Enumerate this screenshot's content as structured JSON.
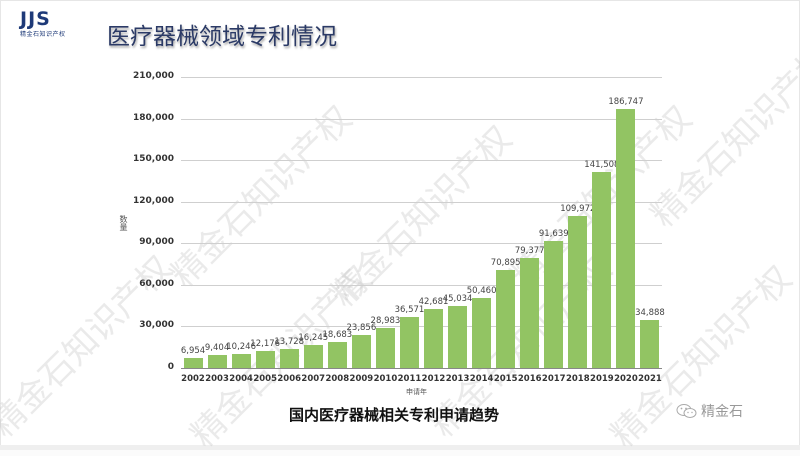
{
  "header": {
    "logo_text": "JJS",
    "logo_subtext": "精金石知识产权",
    "title": "医疗器械领域专利情况"
  },
  "watermark_text": "精金石知识产权",
  "footer": {
    "wechat_label": "精金石"
  },
  "colors": {
    "bar": "#92c463",
    "title": "#2b3a66",
    "logo": "#1e3a78"
  },
  "chart_data": {
    "type": "bar",
    "title": "国内医疗器械相关专利申请趋势",
    "xlabel": "申请年",
    "ylabel": "数量",
    "ylim": [
      0,
      210000
    ],
    "yticks": [
      "0",
      "30,000",
      "60,000",
      "90,000",
      "120,000",
      "150,000",
      "180,000",
      "210,000"
    ],
    "grid": true,
    "legend": null,
    "categories": [
      "2002",
      "2003",
      "2004",
      "2005",
      "2006",
      "2007",
      "2008",
      "2009",
      "2010",
      "2011",
      "2012",
      "2013",
      "2014",
      "2015",
      "2016",
      "2017",
      "2018",
      "2019",
      "2020",
      "2021"
    ],
    "values": [
      6954,
      9404,
      10246,
      12176,
      13728,
      16245,
      18683,
      23856,
      28983,
      36571,
      42681,
      45034,
      50460,
      70895,
      79377,
      91639,
      109972,
      141508,
      186747,
      34888
    ],
    "value_labels": [
      "6,954",
      "9,404",
      "10,246",
      "12,176",
      "13,728",
      "16,245",
      "18,683",
      "23,856",
      "28,983",
      "36,571",
      "42,681",
      "45,034",
      "50,460",
      "70,895",
      "79,377",
      "91,639",
      "109,972",
      "141,508",
      "186,747",
      "34,888"
    ]
  }
}
